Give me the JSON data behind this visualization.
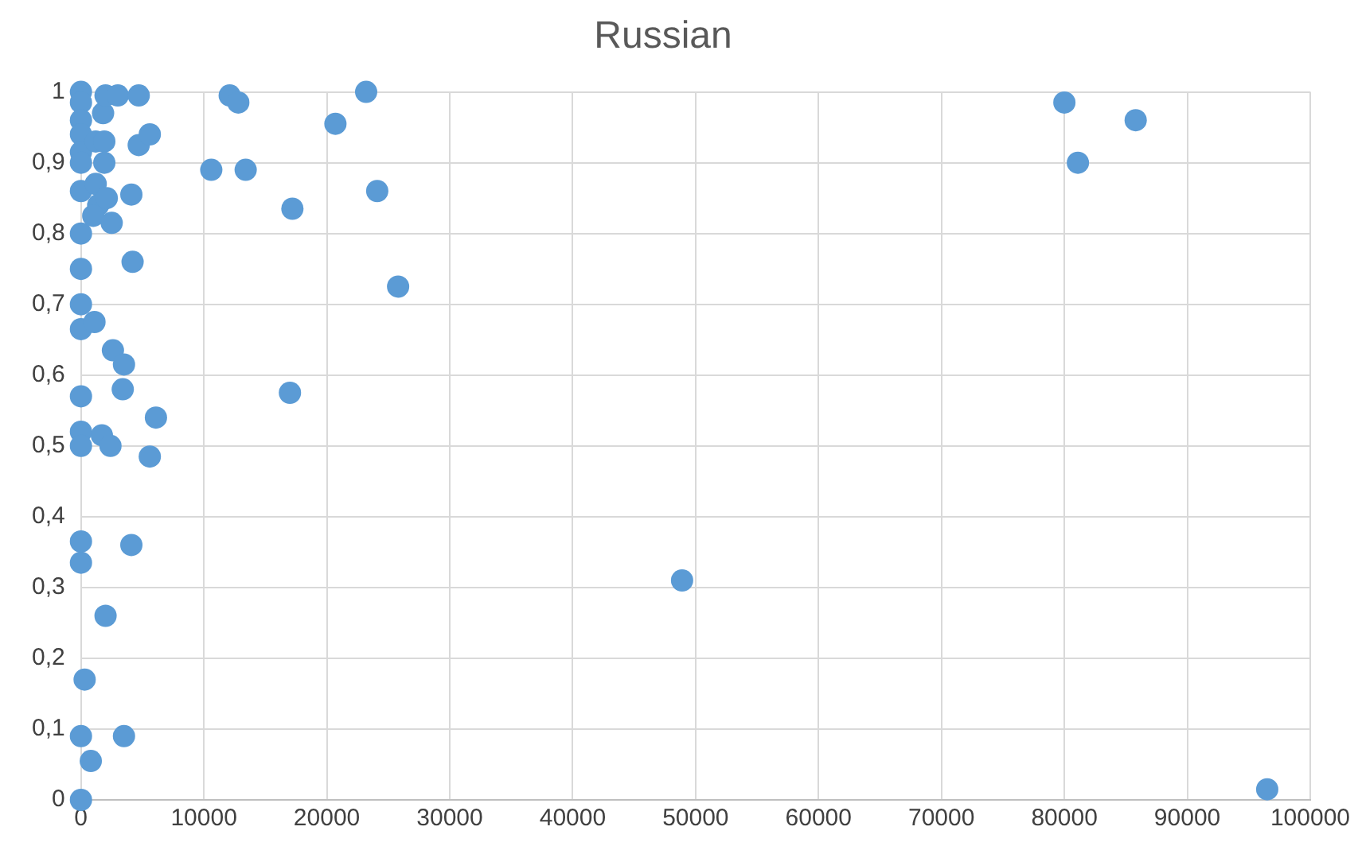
{
  "chart_data": {
    "type": "scatter",
    "title": "Russian",
    "marker": "circle",
    "grid": true,
    "legend": false,
    "xlim": [
      0,
      100000
    ],
    "xticks": [
      0,
      10000,
      20000,
      30000,
      40000,
      50000,
      60000,
      70000,
      80000,
      90000,
      100000
    ],
    "ylim": [
      0,
      1
    ],
    "yticks": [
      0,
      {
        "value": 0.1,
        "label": "0,1"
      },
      {
        "value": 0.2,
        "label": "0,2"
      },
      {
        "value": 0.3,
        "label": "0,3"
      },
      {
        "value": 0.4,
        "label": "0,4"
      },
      {
        "value": 0.5,
        "label": "0,5"
      },
      {
        "value": 0.6,
        "label": "0,6"
      },
      {
        "value": 0.7,
        "label": "0,7"
      },
      {
        "value": 0.8,
        "label": "0,8"
      },
      {
        "value": 0.9,
        "label": "0,9"
      },
      1
    ],
    "series": [
      {
        "color": "#5b9bd5",
        "x": [
          0,
          0,
          0,
          0,
          0,
          0,
          0,
          0,
          0,
          0,
          0,
          0,
          0,
          0,
          0,
          0,
          300,
          0,
          800,
          0,
          1800,
          2000,
          3000,
          1200,
          1900,
          1900,
          1200,
          1400,
          2100,
          1000,
          2500,
          4100,
          1100,
          1700,
          2400,
          2600,
          3500,
          3400,
          6100,
          5600,
          4100,
          2000,
          3500,
          4200,
          4700,
          4700,
          5600,
          12100,
          12800,
          23200,
          20700,
          10600,
          13400,
          24100,
          17200,
          25800,
          17000,
          48900,
          80000,
          85800,
          81100,
          96500
        ],
        "values": [
          1.0,
          0.985,
          0.96,
          0.94,
          0.915,
          0.9,
          0.86,
          0.8,
          0.75,
          0.7,
          0.665,
          0.57,
          0.52,
          0.5,
          0.335,
          0.09,
          0.17,
          0.365,
          0.055,
          0,
          0.97,
          0.995,
          0.995,
          0.93,
          0.93,
          0.9,
          0.87,
          0.84,
          0.85,
          0.825,
          0.815,
          0.855,
          0.675,
          0.515,
          0.5,
          0.635,
          0.615,
          0.58,
          0.54,
          0.485,
          0.36,
          0.26,
          0.09,
          0.76,
          0.995,
          0.925,
          0.94,
          0.995,
          0.985,
          1.0,
          0.955,
          0.89,
          0.89,
          0.86,
          0.835,
          0.725,
          0.575,
          0.31,
          0.985,
          0.96,
          0.9,
          0.015
        ]
      }
    ]
  }
}
